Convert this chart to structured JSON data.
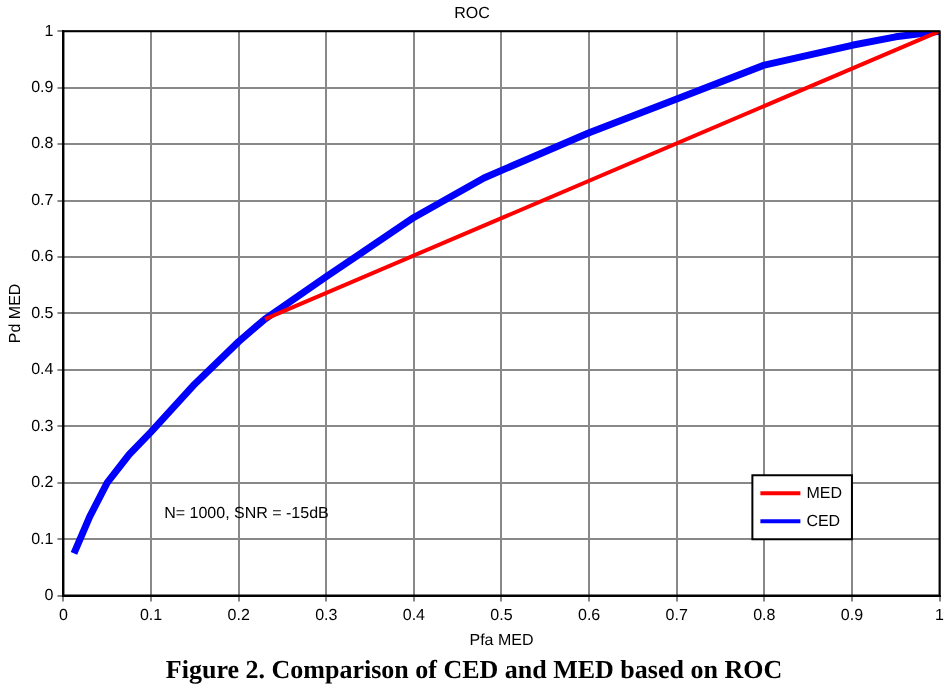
{
  "chart_data": {
    "type": "line",
    "title": "ROC",
    "xlabel": "Pfa MED",
    "ylabel": "Pd MED",
    "annotations": [
      "N= 1000, SNR = -15dB",
      "Figure 2. Comparison of CED and MED based on ROC"
    ],
    "xlim": [
      0,
      1
    ],
    "ylim": [
      0,
      1
    ],
    "xticks": [
      0,
      0.1,
      0.2,
      0.3,
      0.4,
      0.5,
      0.6,
      0.7,
      0.8,
      0.9,
      1
    ],
    "yticks": [
      0,
      0.1,
      0.2,
      0.3,
      0.4,
      0.5,
      0.6,
      0.7,
      0.8,
      0.9,
      1
    ],
    "grid": true,
    "legend": "bottom right",
    "marker": "none",
    "line_style": "solid",
    "series": [
      {
        "name": "MED",
        "color": "#ff0000",
        "x": [
          0.23,
          1
        ],
        "values": [
          0.49,
          1
        ]
      },
      {
        "name": "CED",
        "color": "#0000ff",
        "x": [
          0.012,
          0.03,
          0.05,
          0.075,
          0.1,
          0.15,
          0.2,
          0.23,
          0.3,
          0.4,
          0.48,
          0.6,
          0.7,
          0.8,
          0.9,
          0.95,
          1
        ],
        "values": [
          0.075,
          0.14,
          0.2,
          0.25,
          0.29,
          0.375,
          0.45,
          0.49,
          0.565,
          0.67,
          0.74,
          0.82,
          0.88,
          0.94,
          0.975,
          0.99,
          1
        ]
      }
    ]
  }
}
